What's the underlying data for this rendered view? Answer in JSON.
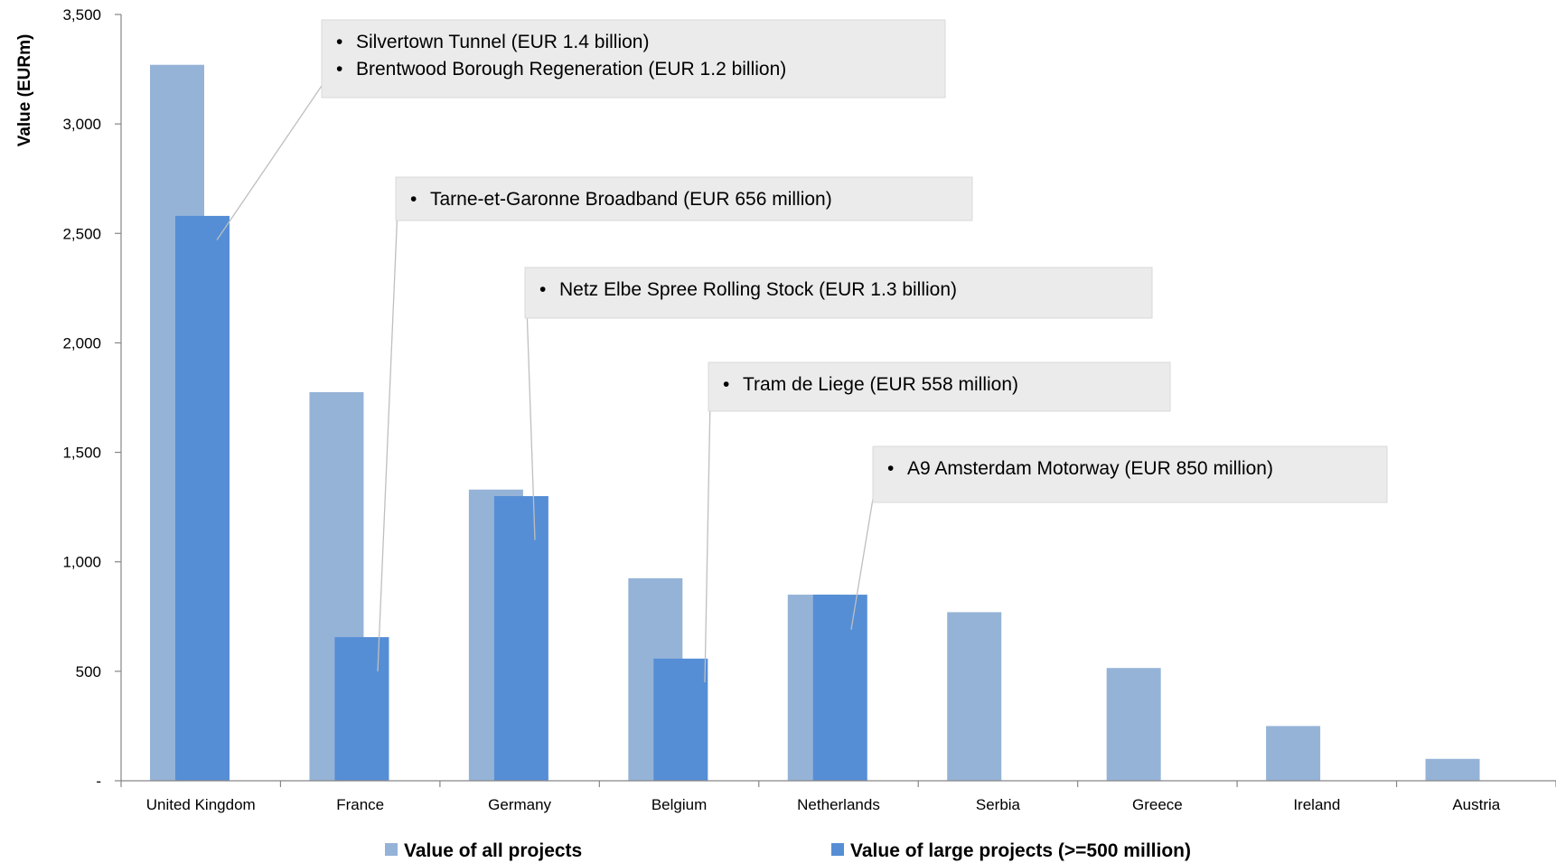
{
  "chart_data": {
    "type": "bar",
    "title": "",
    "xlabel": "",
    "ylabel": "Value (EURm)",
    "ylim": [
      0,
      3500
    ],
    "yticks": [
      0,
      500,
      1000,
      1500,
      2000,
      2500,
      3000,
      3500
    ],
    "ytick_labels": [
      "-",
      "500",
      "1,000",
      "1,500",
      "2,000",
      "2,500",
      "3,000",
      "3,500"
    ],
    "grid": false,
    "legend_position": "bottom",
    "categories": [
      "United Kingdom",
      "France",
      "Germany",
      "Belgium",
      "Netherlands",
      "Serbia",
      "Greece",
      "Ireland",
      "Austria"
    ],
    "series": [
      {
        "name": "Value of all projects",
        "color": "#95B3D7",
        "values": [
          3270,
          1775,
          1330,
          925,
          850,
          770,
          515,
          250,
          100
        ]
      },
      {
        "name": "Value of large projects (>=500 million)",
        "color": "#558ED5",
        "values": [
          2580,
          656,
          1300,
          558,
          850,
          null,
          null,
          null,
          null
        ]
      }
    ],
    "annotations": [
      {
        "category": "United Kingdom",
        "value": 2580,
        "lines": [
          "Silvertown Tunnel (EUR 1.4 billion)",
          "Brentwood Borough Regeneration (EUR 1.2 billion)"
        ]
      },
      {
        "category": "France",
        "value": 656,
        "lines": [
          "Tarne-et-Garonne Broadband (EUR 656 million)"
        ]
      },
      {
        "category": "Germany",
        "value": 1300,
        "lines": [
          "Netz Elbe Spree Rolling Stock (EUR 1.3 billion)"
        ]
      },
      {
        "category": "Belgium",
        "value": 558,
        "lines": [
          "Tram de Liege (EUR 558 million)"
        ]
      },
      {
        "category": "Netherlands",
        "value": 850,
        "lines": [
          "A9 Amsterdam Motorway (EUR 850 million)"
        ]
      }
    ],
    "bullet": "•"
  }
}
